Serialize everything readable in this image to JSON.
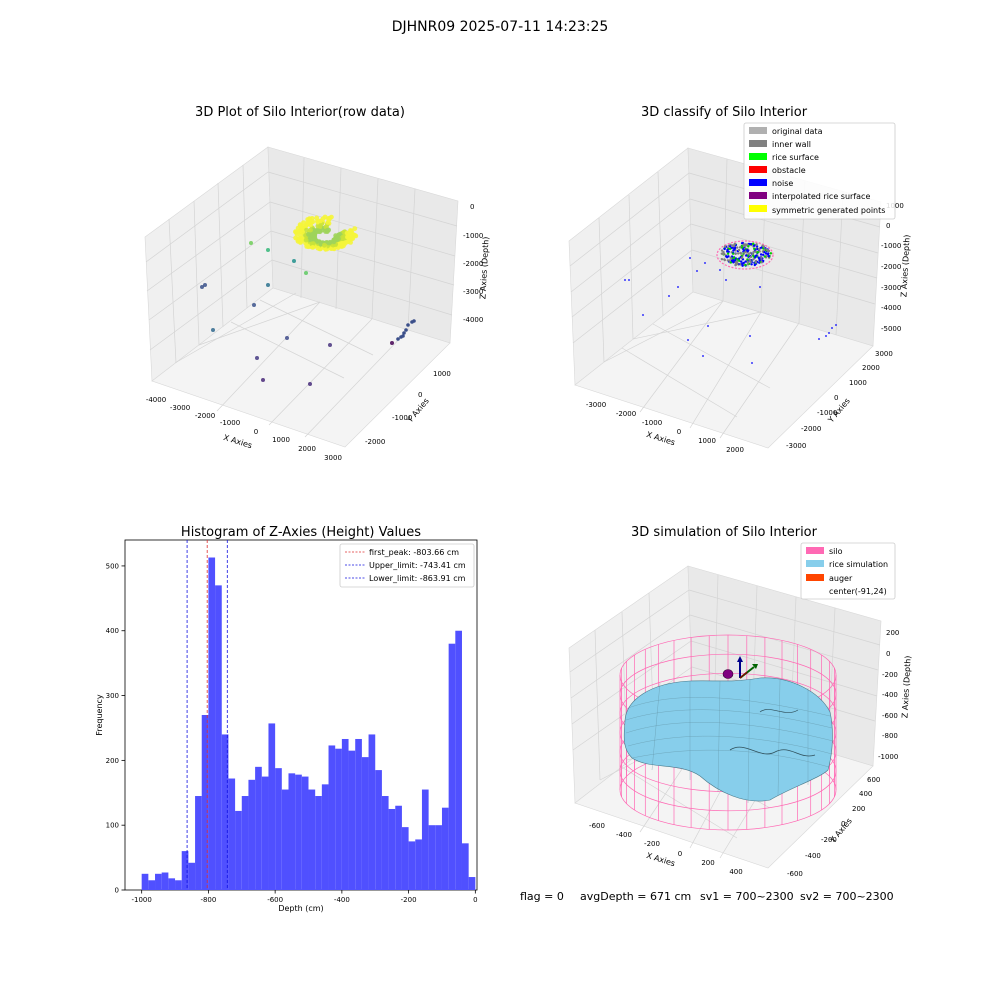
{
  "figure": {
    "title": "DJHNR09 2025-07-11 14:23:25",
    "footer": {
      "flag": "flag = 0",
      "avg_depth": "avgDepth = 671 cm",
      "sv1": "sv1 = 700~2300",
      "sv2": "sv2 = 700~2300"
    }
  },
  "colors": {
    "hist_bar": "#5050ff",
    "first_peak": "#e03030",
    "limit_line": "#1010e0",
    "pane": "#f2f2f2",
    "grid": "#d6d6d6",
    "silo_wire": "#ff69b4",
    "rice_surface": "#87ceeb",
    "auger": "#ff4500"
  },
  "chart_data": [
    {
      "id": "raw",
      "type": "scatter",
      "projection": "3d",
      "title": "3D Plot of Silo Interior(row data)",
      "xlabel": "X Axies",
      "ylabel": "Y Axies",
      "zlabel": "Z Axies (Depth)",
      "xticks": [
        "-4000",
        "-3000",
        "-2000",
        "-1000",
        "0",
        "1000",
        "2000",
        "3000"
      ],
      "yticks": [
        "-2000",
        "-1000",
        "0",
        "1000"
      ],
      "zticks": [
        "0",
        "-1000",
        "-2000",
        "-3000",
        "-4000"
      ],
      "cluster": {
        "description": "dense rice-surface point cloud",
        "color_from": "#9acd32",
        "color_to": "#ffff00"
      },
      "outliers": [
        {
          "color": "#3b528b"
        },
        {
          "color": "#3b528b"
        },
        {
          "color": "#31688e"
        },
        {
          "color": "#443983"
        },
        {
          "color": "#482878"
        },
        {
          "color": "#472c7a"
        },
        {
          "color": "#3e4a89"
        },
        {
          "color": "#46327e"
        },
        {
          "color": "#6ece58"
        },
        {
          "color": "#35b779"
        },
        {
          "color": "#5ec962"
        },
        {
          "color": "#21918c"
        },
        {
          "color": "#2c728e"
        },
        {
          "color": "#3b528b"
        },
        {
          "color": "#440154"
        }
      ]
    },
    {
      "id": "classify",
      "type": "scatter",
      "projection": "3d",
      "title": "3D classify of Silo Interior",
      "xlabel": "X Axies",
      "ylabel": "Y Axies",
      "zlabel": "Z Axies (Depth)",
      "xticks": [
        "-3000",
        "-2000",
        "-1000",
        "0",
        "1000",
        "2000"
      ],
      "yticks": [
        "-3000",
        "-2000",
        "-1000",
        "0",
        "1000",
        "2000",
        "3000"
      ],
      "zticks": [
        "1000",
        "0",
        "-1000",
        "-2000",
        "-3000",
        "-4000",
        "-5000"
      ],
      "legend": {
        "position": "top-right",
        "entries": [
          {
            "label": "original data",
            "color": "#b0b0b0"
          },
          {
            "label": "inner wall",
            "color": "#808080"
          },
          {
            "label": "rice surface",
            "color": "#00ff00"
          },
          {
            "label": "obstacle",
            "color": "#ff0000"
          },
          {
            "label": "noise",
            "color": "#0000ff"
          },
          {
            "label": "interpolated rice surface",
            "color": "#800080"
          },
          {
            "label": "symmetric generated points",
            "color": "#ffff00"
          }
        ]
      }
    },
    {
      "id": "histogram",
      "type": "bar",
      "title": "Histogram of Z-Axies (Height) Values",
      "xlabel": "Depth (cm)",
      "ylabel": "Frequency",
      "xlim": [
        -1050,
        5
      ],
      "ylim": [
        0,
        540
      ],
      "xticks": [
        -1000,
        -800,
        -600,
        -400,
        -200,
        0
      ],
      "yticks": [
        0,
        100,
        200,
        300,
        400,
        500
      ],
      "bin_start": -1000,
      "bin_width": 20,
      "values": [
        25,
        15,
        25,
        27,
        18,
        15,
        60,
        42,
        145,
        270,
        513,
        470,
        240,
        172,
        122,
        145,
        170,
        190,
        175,
        257,
        188,
        155,
        180,
        178,
        175,
        155,
        145,
        163,
        223,
        218,
        233,
        215,
        233,
        205,
        240,
        185,
        145,
        125,
        130,
        97,
        75,
        78,
        155,
        100,
        100,
        127,
        380,
        400,
        72,
        20
      ],
      "vlines": [
        {
          "label": "first_peak: -803.66 cm",
          "x": -803.66,
          "color": "#e03030"
        },
        {
          "label": "Upper_limit: -743.41 cm",
          "x": -743.41,
          "color": "#1010e0"
        },
        {
          "label": "Lower_limit: -863.91 cm",
          "x": -863.91,
          "color": "#1010e0"
        }
      ],
      "legend": {
        "position": "top-right"
      }
    },
    {
      "id": "simulation",
      "type": "surface",
      "projection": "3d",
      "title": "3D simulation of Silo Interior",
      "xlabel": "X Axies",
      "ylabel": "Y Axies",
      "zlabel": "Z Axies (Depth)",
      "xticks": [
        "-600",
        "-400",
        "-200",
        "0",
        "200",
        "400"
      ],
      "yticks": [
        "-600",
        "-400",
        "-200",
        "0",
        "200",
        "400",
        "600"
      ],
      "zticks": [
        "200",
        "0",
        "-200",
        "-400",
        "-600",
        "-800",
        "-1000"
      ],
      "legend": {
        "position": "top-right",
        "entries": [
          {
            "label": "silo",
            "color": "#ff69b4"
          },
          {
            "label": "rice simulation",
            "color": "#87ceeb"
          },
          {
            "label": "auger",
            "color": "#ff4500"
          },
          {
            "label": "center(-91,24)",
            "color": ""
          }
        ]
      }
    }
  ]
}
